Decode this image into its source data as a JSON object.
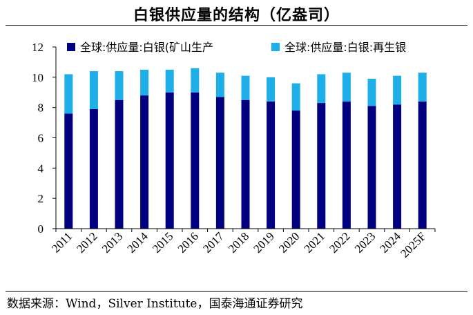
{
  "title": "白银供应量的结构（亿盎司）",
  "source": "数据来源：Wind，Silver Institute，国泰海通证券研究",
  "colors": {
    "mine": "#000080",
    "recycle": "#1eaee8",
    "axis": "#000000"
  },
  "chart_data": {
    "type": "bar",
    "stacked": true,
    "title": "白银供应量的结构（亿盎司）",
    "xlabel": "",
    "ylabel": "",
    "ylim": [
      0,
      12
    ],
    "yticks": [
      0,
      2,
      4,
      6,
      8,
      10,
      12
    ],
    "grid": false,
    "legend_position": "top",
    "categories": [
      "2011",
      "2012",
      "2013",
      "2014",
      "2015",
      "2016",
      "2017",
      "2018",
      "2019",
      "2020",
      "2021",
      "2022",
      "2023",
      "2024",
      "2025F"
    ],
    "series": [
      {
        "name": "全球:供应量:白银(矿山生产",
        "values": [
          7.6,
          7.9,
          8.5,
          8.8,
          9.0,
          9.0,
          8.7,
          8.5,
          8.4,
          7.8,
          8.3,
          8.4,
          8.1,
          8.2,
          8.4
        ]
      },
      {
        "name": "全球:供应量:白银:再生银",
        "values": [
          2.6,
          2.5,
          1.9,
          1.7,
          1.5,
          1.6,
          1.6,
          1.6,
          1.6,
          1.8,
          1.9,
          1.9,
          1.8,
          1.9,
          1.9
        ]
      }
    ]
  }
}
